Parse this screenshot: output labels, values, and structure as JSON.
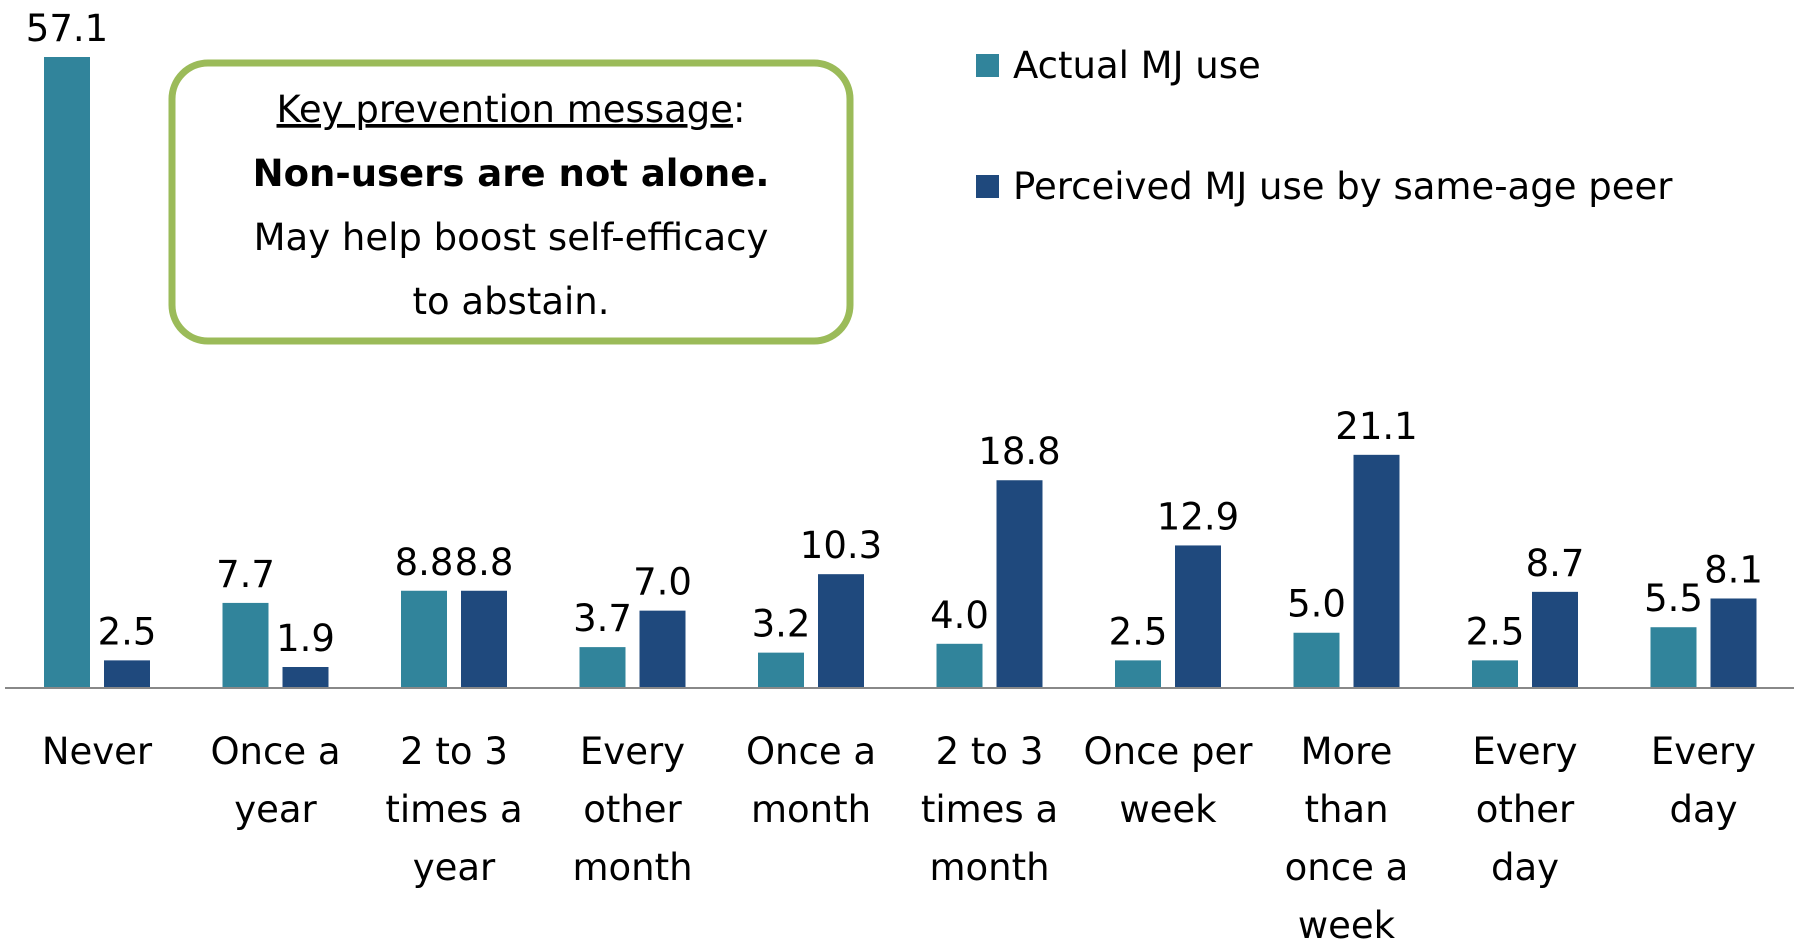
{
  "chart_data": {
    "type": "bar",
    "categories": [
      "Never",
      "Once a year",
      "2 to 3 times a year",
      "Every other month",
      "Once a month",
      "2 to 3 times a month",
      "Once per week",
      "More than once a week",
      "Every other day",
      "Every day"
    ],
    "series": [
      {
        "name": "Actual MJ use",
        "color": "#31849b",
        "values": [
          57.1,
          7.7,
          8.8,
          3.7,
          3.2,
          4.0,
          2.5,
          5.0,
          2.5,
          5.5
        ],
        "value_labels": [
          "57.1",
          "7.7",
          "8.8",
          "3.7",
          "3.2",
          "4.0",
          "2.5",
          "5.0",
          "2.5",
          "5.5"
        ]
      },
      {
        "name": "Perceived MJ use by same-age peer",
        "color": "#1f497d",
        "values": [
          2.5,
          1.9,
          8.8,
          7.0,
          10.3,
          18.8,
          12.9,
          21.1,
          8.7,
          8.1
        ],
        "value_labels": [
          "2.5",
          "1.9",
          "8.8",
          "7.0",
          "10.3",
          "18.8",
          "12.9",
          "21.1",
          "8.7",
          "8.1"
        ]
      }
    ],
    "annotation": {
      "heading": "Key prevention message",
      "heading_suffix": ":",
      "emphasis": "Non-users are not alone.",
      "body_line1": "May help boost self-efficacy",
      "body_line2": "to abstain.",
      "border_color": "#9bbb59"
    }
  }
}
